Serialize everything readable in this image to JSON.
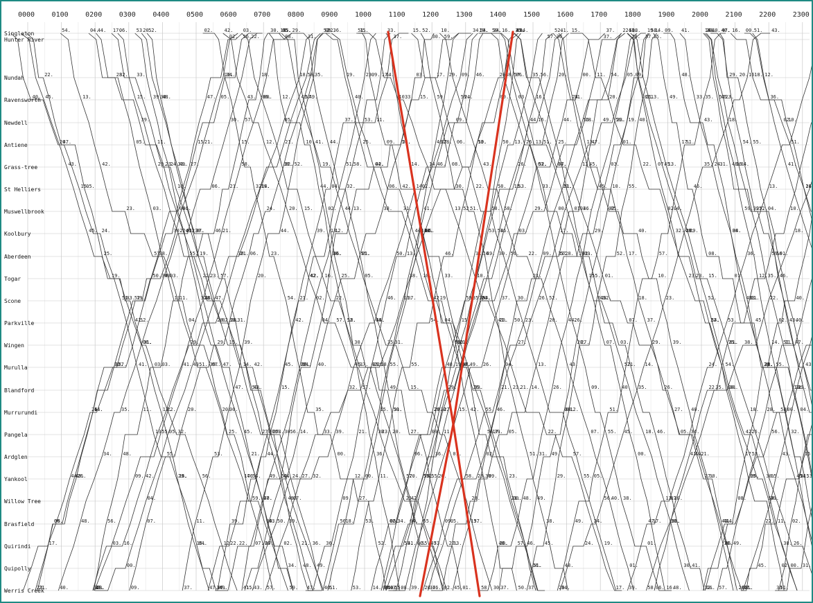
{
  "diagram": {
    "hours": [
      "0000",
      "0100",
      "0200",
      "0300",
      "0400",
      "0500",
      "0600",
      "0700",
      "0800",
      "0900",
      "1000",
      "1100",
      "1200",
      "1300",
      "1400",
      "1500",
      "1600",
      "1700",
      "1800",
      "1900",
      "2000",
      "2100",
      "2200",
      "2300"
    ],
    "stations": [
      "Singlaton",
      "Hunter River",
      "Nundah",
      "Ravensworth",
      "Newdell",
      "Antiene",
      "Grass-tree",
      "St Helliers",
      "Muswellbrook",
      "Koolbury",
      "Aberdeen",
      "Togar",
      "Scone",
      "Parkville",
      "Wingen",
      "Murulla",
      "Blandford",
      "Murrurundi",
      "Pangela",
      "Ardglen",
      "Yankool",
      "Willow Tree",
      "Brasfield",
      "Quirindi",
      "Quipolly",
      "Werris Creek"
    ],
    "highlight_color": "#d9331f",
    "line_color": "#333333"
  }
}
